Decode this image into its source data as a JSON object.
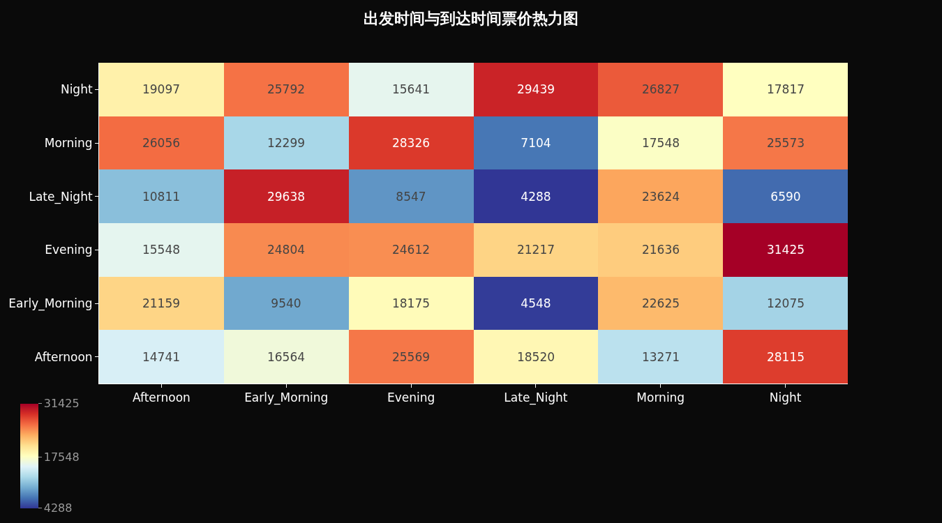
{
  "chart_data": {
    "type": "heatmap",
    "title": "出发时间与到达时间票价热力图",
    "categories": [
      "Afternoon",
      "Early_Morning",
      "Evening",
      "Late_Night",
      "Morning",
      "Night"
    ],
    "y_categories": [
      "Night",
      "Morning",
      "Late_Night",
      "Evening",
      "Early_Morning",
      "Afternoon"
    ],
    "cells": [
      [
        19097,
        25792,
        15641,
        29439,
        26827,
        17817
      ],
      [
        26056,
        12299,
        28326,
        7104,
        17548,
        25573
      ],
      [
        10811,
        29638,
        8547,
        4288,
        23624,
        6590
      ],
      [
        15548,
        24804,
        24612,
        21217,
        21636,
        31425
      ],
      [
        21159,
        9540,
        18175,
        4548,
        22625,
        12075
      ],
      [
        14741,
        16564,
        25569,
        18520,
        13271,
        28115
      ]
    ],
    "data_labels": true,
    "clim": [
      4288,
      31425
    ],
    "cticks": [
      4288,
      17548,
      31425
    ]
  }
}
